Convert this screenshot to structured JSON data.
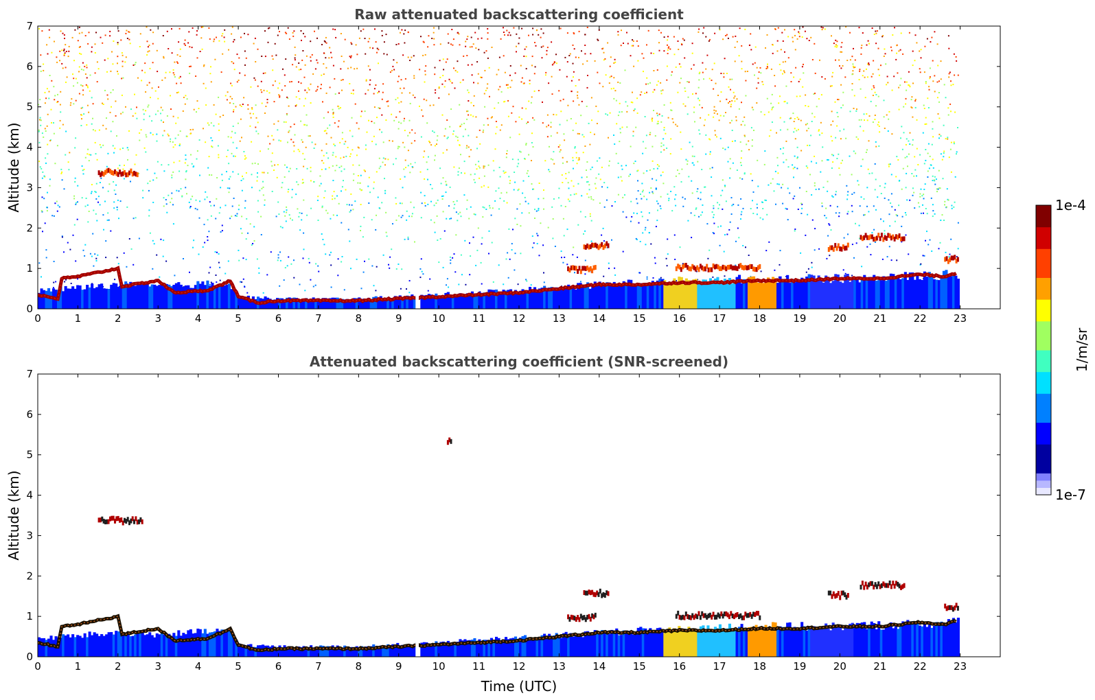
{
  "chart_data": [
    {
      "type": "heatmap",
      "title": "Raw attenuated backscattering coefficient",
      "xlabel": "",
      "ylabel": "Altitude (km)",
      "x_ticks": [
        "0",
        "1",
        "2",
        "3",
        "4",
        "5",
        "6",
        "7",
        "8",
        "9",
        "10",
        "11",
        "12",
        "13",
        "14",
        "15",
        "16",
        "17",
        "18",
        "19",
        "20",
        "21",
        "22",
        "23"
      ],
      "y_ticks": [
        "0",
        "1",
        "2",
        "3",
        "4",
        "5",
        "6",
        "7"
      ],
      "xlim": [
        0,
        24
      ],
      "ylim": [
        0,
        7
      ],
      "data_extent_hours": [
        0,
        22.95
      ],
      "gap_hours": [
        9.42,
        9.5
      ],
      "noise": true,
      "ground_layer_top_km": [
        [
          0,
          0.45
        ],
        [
          2,
          0.6
        ],
        [
          3,
          0.55
        ],
        [
          4.7,
          0.65
        ],
        [
          5,
          0.3
        ],
        [
          6,
          0.25
        ],
        [
          8,
          0.25
        ],
        [
          10,
          0.35
        ],
        [
          12.5,
          0.5
        ],
        [
          14,
          0.6
        ],
        [
          16,
          0.7
        ],
        [
          18,
          0.75
        ],
        [
          20,
          0.75
        ],
        [
          23,
          0.85
        ]
      ],
      "cloud_base_km": [
        [
          0,
          0.35
        ],
        [
          0.5,
          0.25
        ],
        [
          0.6,
          0.75
        ],
        [
          1,
          0.8
        ],
        [
          1.5,
          0.9
        ],
        [
          2,
          1.0
        ],
        [
          2.1,
          0.55
        ],
        [
          3,
          0.7
        ],
        [
          3.4,
          0.4
        ],
        [
          4.2,
          0.45
        ],
        [
          4.6,
          0.6
        ],
        [
          4.8,
          0.7
        ],
        [
          5,
          0.3
        ],
        [
          5.5,
          0.15
        ],
        [
          6,
          0.2
        ],
        [
          7,
          0.2
        ],
        [
          8,
          0.2
        ],
        [
          9,
          0.25
        ],
        [
          10,
          0.3
        ],
        [
          12,
          0.4
        ],
        [
          13,
          0.5
        ],
        [
          14,
          0.6
        ],
        [
          15,
          0.6
        ],
        [
          16,
          0.65
        ],
        [
          17,
          0.65
        ],
        [
          18,
          0.7
        ],
        [
          19,
          0.7
        ],
        [
          20,
          0.75
        ],
        [
          21,
          0.75
        ],
        [
          22,
          0.85
        ],
        [
          22.6,
          0.8
        ],
        [
          22.95,
          0.9
        ]
      ],
      "elevated_features": [
        {
          "x": [
            1.5,
            2.5
          ],
          "y_km": 3.35
        },
        {
          "x": [
            13.6,
            14.2
          ],
          "y_km": 1.55
        },
        {
          "x": [
            13.2,
            13.9
          ],
          "y_km": 0.95
        },
        {
          "x": [
            15.9,
            18.0
          ],
          "y_km": 1.0
        },
        {
          "x": [
            19.7,
            20.2
          ],
          "y_km": 1.5
        },
        {
          "x": [
            20.5,
            21.6
          ],
          "y_km": 1.75
        },
        {
          "x": [
            22.6,
            22.95
          ],
          "y_km": 1.2
        }
      ],
      "colorbar": {
        "label": "1/m/sr",
        "max_label": "1e-4",
        "min_label": "1e-7"
      }
    },
    {
      "type": "heatmap",
      "title": "Attenuated backscattering coefficient (SNR-screened)",
      "xlabel": "Time (UTC)",
      "ylabel": "Altitude (km)",
      "x_ticks": [
        "0",
        "1",
        "2",
        "3",
        "4",
        "5",
        "6",
        "7",
        "8",
        "9",
        "10",
        "11",
        "12",
        "13",
        "14",
        "15",
        "16",
        "17",
        "18",
        "19",
        "20",
        "21",
        "22",
        "23"
      ],
      "y_ticks": [
        "0",
        "1",
        "2",
        "3",
        "4",
        "5",
        "6",
        "7"
      ],
      "xlim": [
        0,
        24
      ],
      "ylim": [
        0,
        7
      ],
      "data_extent_hours": [
        0,
        22.95
      ],
      "gap_hours": [
        9.42,
        9.5
      ],
      "noise": false,
      "ground_layer_top_km": [
        [
          0,
          0.45
        ],
        [
          2,
          0.6
        ],
        [
          3,
          0.55
        ],
        [
          4.7,
          0.65
        ],
        [
          5,
          0.3
        ],
        [
          6,
          0.25
        ],
        [
          8,
          0.25
        ],
        [
          10,
          0.35
        ],
        [
          12.5,
          0.5
        ],
        [
          14,
          0.6
        ],
        [
          16,
          0.7
        ],
        [
          18,
          0.75
        ],
        [
          20,
          0.75
        ],
        [
          23,
          0.85
        ]
      ],
      "cloud_base_km": [
        [
          0,
          0.35
        ],
        [
          0.5,
          0.25
        ],
        [
          0.6,
          0.75
        ],
        [
          1,
          0.8
        ],
        [
          1.5,
          0.9
        ],
        [
          2,
          1.0
        ],
        [
          2.1,
          0.55
        ],
        [
          3,
          0.7
        ],
        [
          3.4,
          0.4
        ],
        [
          4.2,
          0.45
        ],
        [
          4.6,
          0.6
        ],
        [
          4.8,
          0.7
        ],
        [
          5,
          0.3
        ],
        [
          5.5,
          0.15
        ],
        [
          6,
          0.2
        ],
        [
          7,
          0.2
        ],
        [
          8,
          0.2
        ],
        [
          9,
          0.25
        ],
        [
          10,
          0.3
        ],
        [
          12,
          0.4
        ],
        [
          13,
          0.5
        ],
        [
          14,
          0.6
        ],
        [
          15,
          0.6
        ],
        [
          16,
          0.65
        ],
        [
          17,
          0.65
        ],
        [
          18,
          0.7
        ],
        [
          19,
          0.7
        ],
        [
          20,
          0.75
        ],
        [
          21,
          0.75
        ],
        [
          22,
          0.85
        ],
        [
          22.6,
          0.8
        ],
        [
          22.95,
          0.9
        ]
      ],
      "elevated_features": [
        {
          "x": [
            1.5,
            2.6
          ],
          "y_km": 3.35
        },
        {
          "x": [
            10.2,
            10.3
          ],
          "y_km": 5.3
        },
        {
          "x": [
            13.6,
            14.2
          ],
          "y_km": 1.55
        },
        {
          "x": [
            13.2,
            13.9
          ],
          "y_km": 0.95
        },
        {
          "x": [
            15.9,
            18.0
          ],
          "y_km": 1.0
        },
        {
          "x": [
            19.7,
            20.2
          ],
          "y_km": 1.5
        },
        {
          "x": [
            20.5,
            21.6
          ],
          "y_km": 1.75
        },
        {
          "x": [
            22.6,
            22.95
          ],
          "y_km": 1.2
        }
      ]
    }
  ],
  "colorbar": {
    "label": "1/m/sr",
    "max_label": "1e-4",
    "min_label": "1e-7",
    "colormap": [
      "#0000a0",
      "#0000ff",
      "#0080ff",
      "#00e0ff",
      "#40ffc0",
      "#a0ff60",
      "#ffff00",
      "#ffa000",
      "#ff4000",
      "#d00000",
      "#800000"
    ],
    "low_colors": [
      "#e8e8ff",
      "#b8b8ff",
      "#8080ff"
    ]
  }
}
